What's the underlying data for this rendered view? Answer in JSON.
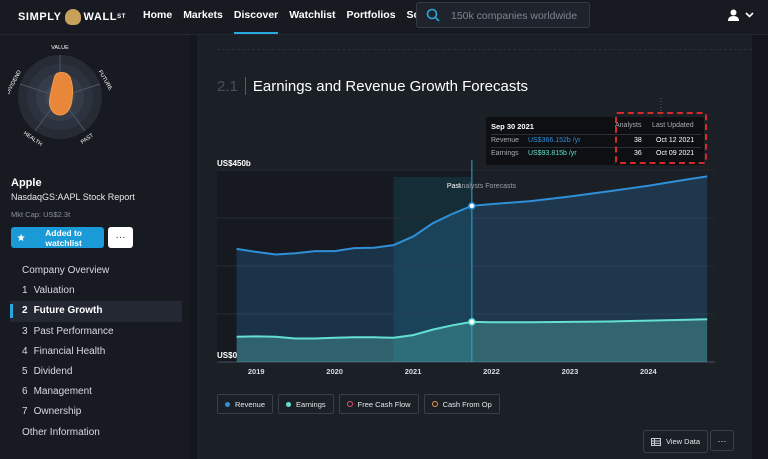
{
  "brand": {
    "logo_left": "SIMPLY",
    "logo_right": "WALL",
    "logo_sup": "ST"
  },
  "nav": {
    "links": [
      "Home",
      "Markets",
      "Discover",
      "Watchlist",
      "Portfolios",
      "Screener"
    ],
    "active": "Discover"
  },
  "search": {
    "placeholder": "150k companies worldwide"
  },
  "sidebar": {
    "snowflake_labels": {
      "value": "VALUE",
      "future": "FUTURE",
      "past": "PAST",
      "health": "HEALTH",
      "dividend": "DIVIDEND"
    },
    "company": "Apple",
    "ticker": "NasdaqGS:AAPL Stock Report",
    "mkt_cap": "Mkt Cap: US$2.3t",
    "watchlist_button": "Added to watchlist",
    "more_button": "···",
    "menu": [
      {
        "num": "",
        "label": "Company Overview",
        "active": false
      },
      {
        "num": "1",
        "label": "Valuation",
        "active": false
      },
      {
        "num": "2",
        "label": "Future Growth",
        "active": true
      },
      {
        "num": "3",
        "label": "Past Performance",
        "active": false
      },
      {
        "num": "4",
        "label": "Financial Health",
        "active": false
      },
      {
        "num": "5",
        "label": "Dividend",
        "active": false
      },
      {
        "num": "6",
        "label": "Management",
        "active": false
      },
      {
        "num": "7",
        "label": "Ownership",
        "active": false
      },
      {
        "num": "",
        "label": "Other Information",
        "active": false
      }
    ]
  },
  "section": {
    "number": "2.1",
    "title": "Earnings and Revenue Growth Forecasts"
  },
  "chart_data": {
    "type": "area",
    "y_top_label": "US$450b",
    "y_bottom_label": "US$0",
    "ylim": [
      0,
      450
    ],
    "xlim": [
      2018.5,
      2024.85
    ],
    "x_ticks": [
      "2019",
      "2020",
      "2021",
      "2022",
      "2023",
      "2024"
    ],
    "past_label": "Past",
    "forecast_label": "Analysts Forecasts",
    "divider_x": 2021.75,
    "series": [
      {
        "name": "Revenue",
        "color": "#2f8fd8",
        "points": [
          [
            2018.75,
            265
          ],
          [
            2019.0,
            258
          ],
          [
            2019.25,
            252
          ],
          [
            2019.5,
            255
          ],
          [
            2019.75,
            260
          ],
          [
            2020.0,
            260
          ],
          [
            2020.25,
            267
          ],
          [
            2020.5,
            268
          ],
          [
            2020.75,
            274
          ],
          [
            2021.0,
            294
          ],
          [
            2021.25,
            325
          ],
          [
            2021.5,
            347
          ],
          [
            2021.75,
            366
          ],
          [
            2022.0,
            370
          ],
          [
            2022.5,
            377
          ],
          [
            2023.0,
            388
          ],
          [
            2023.5,
            400
          ],
          [
            2024.0,
            413
          ],
          [
            2024.5,
            428
          ],
          [
            2024.75,
            435
          ]
        ]
      },
      {
        "name": "Earnings",
        "color": "#64e0d0",
        "points": [
          [
            2018.75,
            59
          ],
          [
            2019.0,
            60
          ],
          [
            2019.25,
            59
          ],
          [
            2019.5,
            55
          ],
          [
            2019.75,
            55
          ],
          [
            2020.0,
            57
          ],
          [
            2020.25,
            58
          ],
          [
            2020.5,
            58
          ],
          [
            2020.75,
            57
          ],
          [
            2021.0,
            63
          ],
          [
            2021.25,
            76
          ],
          [
            2021.5,
            86
          ],
          [
            2021.75,
            94
          ],
          [
            2022.0,
            93
          ],
          [
            2022.5,
            93
          ],
          [
            2023.0,
            94
          ],
          [
            2023.5,
            95
          ],
          [
            2024.0,
            97
          ],
          [
            2024.5,
            99
          ],
          [
            2024.75,
            100
          ]
        ]
      }
    ],
    "tooltip": {
      "date": "Sep 30 2021",
      "head_analysts": "Analysts",
      "head_updated": "Last Updated",
      "rows": [
        {
          "label": "Revenue",
          "value": "US$366.152b /yr",
          "analysts": "38",
          "updated": "Oct 12 2021",
          "color": "#2f8fd8"
        },
        {
          "label": "Earnings",
          "value": "US$93.815b /yr",
          "analysts": "36",
          "updated": "Oct 09 2021",
          "color": "#64e0d0"
        }
      ]
    },
    "legend": [
      {
        "label": "Revenue",
        "color": "#2f8fd8",
        "style": "dot"
      },
      {
        "label": "Earnings",
        "color": "#64e0d0",
        "style": "dot"
      },
      {
        "label": "Free Cash Flow",
        "color": "#e4526b",
        "style": "ring"
      },
      {
        "label": "Cash From Op",
        "color": "#e29a4d",
        "style": "ring"
      }
    ]
  },
  "actions": {
    "view_data": "View Data",
    "more": "···"
  }
}
